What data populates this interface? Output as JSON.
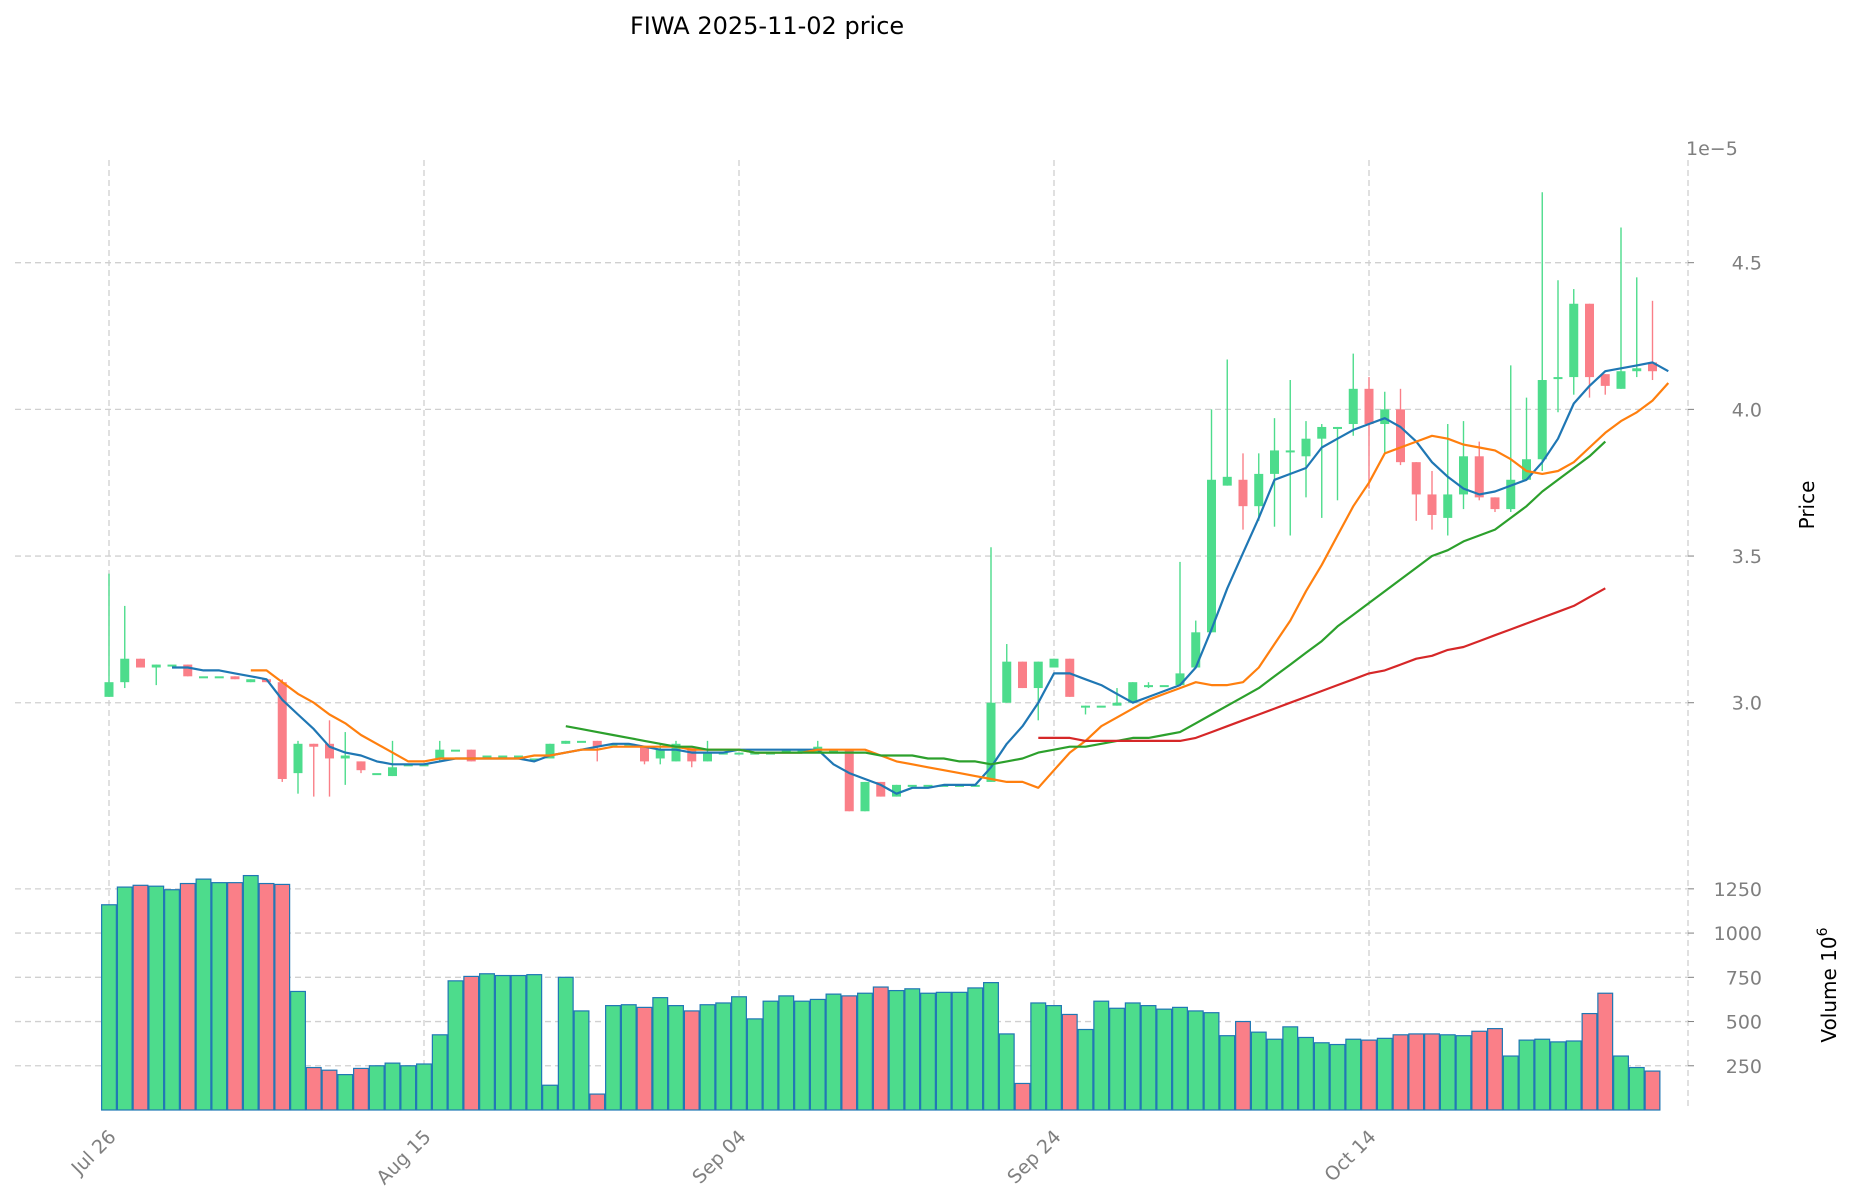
{
  "chart_data": {
    "type": "candlestick",
    "title": "FIWA  2025-11-02  price",
    "price_axis": {
      "label": "Price",
      "exponent_label": "1e−5",
      "ylim": [
        2.515,
        4.85
      ],
      "ticks": [
        3.0,
        3.5,
        4.0,
        4.5
      ],
      "tick_labels": [
        "3.0",
        "3.5",
        "4.0",
        "4.5"
      ]
    },
    "volume_axis": {
      "label": "Volume  10",
      "label_exponent": "6",
      "ylim": [
        0,
        1300
      ],
      "ticks": [
        250,
        500,
        750,
        1000,
        1250
      ],
      "tick_labels": [
        "250",
        "500",
        "750",
        "1000",
        "1250"
      ]
    },
    "x_ticks": [
      {
        "index": 0,
        "label": "Jul 26"
      },
      {
        "index": 20,
        "label": "Aug 15"
      },
      {
        "index": 40,
        "label": "Sep 04"
      },
      {
        "index": 60,
        "label": "Sep 24"
      },
      {
        "index": 80,
        "label": "Oct 14"
      }
    ],
    "colors": {
      "up": "#2ebd6b",
      "down": "#f6465d",
      "up_fill": "#4ddc8c",
      "down_fill": "#fa7f88",
      "edge": "#1f77b4",
      "grid": "#d0d0d0",
      "ma1": "#1f77b4",
      "ma2": "#ff7f0e",
      "ma3": "#2ca02c",
      "ma4": "#d62728"
    },
    "candles": [
      [
        3.02,
        3.07,
        3.44,
        3.02,
        1160
      ],
      [
        3.07,
        3.15,
        3.33,
        3.05,
        1260
      ],
      [
        3.15,
        3.12,
        3.15,
        3.12,
        1270
      ],
      [
        3.12,
        3.13,
        3.13,
        3.06,
        1265
      ],
      [
        3.13,
        3.13,
        3.13,
        3.13,
        1245
      ],
      [
        3.13,
        3.09,
        3.13,
        3.09,
        1280
      ],
      [
        3.09,
        3.09,
        3.09,
        3.09,
        1305
      ],
      [
        3.09,
        3.09,
        3.09,
        3.09,
        1285
      ],
      [
        3.09,
        3.08,
        3.09,
        3.08,
        1285
      ],
      [
        3.07,
        3.08,
        3.08,
        3.07,
        1325
      ],
      [
        3.08,
        3.07,
        3.08,
        3.07,
        1280
      ],
      [
        3.07,
        2.74,
        3.08,
        2.73,
        1275
      ],
      [
        2.76,
        2.86,
        2.87,
        2.69,
        670
      ],
      [
        2.86,
        2.85,
        2.86,
        2.68,
        240
      ],
      [
        2.86,
        2.81,
        2.94,
        2.68,
        225
      ],
      [
        2.81,
        2.82,
        2.9,
        2.72,
        200
      ],
      [
        2.8,
        2.77,
        2.8,
        2.76,
        235
      ],
      [
        2.76,
        2.76,
        2.76,
        2.76,
        250
      ],
      [
        2.75,
        2.78,
        2.87,
        2.75,
        265
      ],
      [
        2.79,
        2.79,
        2.79,
        2.79,
        250
      ],
      [
        2.79,
        2.79,
        2.79,
        2.79,
        260
      ],
      [
        2.81,
        2.84,
        2.87,
        2.8,
        425
      ],
      [
        2.84,
        2.84,
        2.84,
        2.84,
        730
      ],
      [
        2.84,
        2.8,
        2.84,
        2.8,
        755
      ],
      [
        2.82,
        2.82,
        2.82,
        2.82,
        770
      ],
      [
        2.82,
        2.82,
        2.82,
        2.82,
        760
      ],
      [
        2.82,
        2.82,
        2.82,
        2.82,
        760
      ],
      [
        2.81,
        2.81,
        2.81,
        2.81,
        765
      ],
      [
        2.81,
        2.86,
        2.86,
        2.81,
        140
      ],
      [
        2.86,
        2.87,
        2.87,
        2.86,
        750
      ],
      [
        2.87,
        2.87,
        2.87,
        2.87,
        560
      ],
      [
        2.87,
        2.85,
        2.87,
        2.8,
        90
      ],
      [
        2.86,
        2.86,
        2.86,
        2.86,
        590
      ],
      [
        2.86,
        2.86,
        2.86,
        2.86,
        595
      ],
      [
        2.85,
        2.8,
        2.85,
        2.79,
        580
      ],
      [
        2.81,
        2.84,
        2.86,
        2.79,
        635
      ],
      [
        2.8,
        2.86,
        2.87,
        2.8,
        590
      ],
      [
        2.85,
        2.8,
        2.85,
        2.78,
        560
      ],
      [
        2.8,
        2.83,
        2.87,
        2.8,
        595
      ],
      [
        2.83,
        2.83,
        2.83,
        2.83,
        605
      ],
      [
        2.83,
        2.83,
        2.83,
        2.83,
        640
      ],
      [
        2.83,
        2.83,
        2.83,
        2.83,
        515
      ],
      [
        2.83,
        2.83,
        2.83,
        2.83,
        615
      ],
      [
        2.84,
        2.84,
        2.84,
        2.84,
        645
      ],
      [
        2.84,
        2.84,
        2.84,
        2.84,
        615
      ],
      [
        2.83,
        2.85,
        2.87,
        2.83,
        625
      ],
      [
        2.84,
        2.84,
        2.84,
        2.84,
        655
      ],
      [
        2.84,
        2.63,
        2.84,
        2.63,
        645
      ],
      [
        2.63,
        2.73,
        2.73,
        2.63,
        660
      ],
      [
        2.73,
        2.68,
        2.73,
        2.68,
        695
      ],
      [
        2.68,
        2.72,
        2.72,
        2.68,
        675
      ],
      [
        2.72,
        2.72,
        2.72,
        2.72,
        685
      ],
      [
        2.72,
        2.72,
        2.72,
        2.72,
        660
      ],
      [
        2.72,
        2.72,
        2.72,
        2.72,
        665
      ],
      [
        2.72,
        2.72,
        2.72,
        2.72,
        665
      ],
      [
        2.72,
        2.72,
        2.72,
        2.72,
        690
      ],
      [
        2.73,
        3.0,
        3.53,
        2.73,
        720
      ],
      [
        3.0,
        3.14,
        3.2,
        3.0,
        430
      ],
      [
        3.14,
        3.05,
        3.14,
        3.05,
        150
      ],
      [
        3.05,
        3.14,
        3.14,
        2.94,
        605
      ],
      [
        3.12,
        3.15,
        3.15,
        3.12,
        590
      ],
      [
        3.15,
        3.02,
        3.15,
        3.02,
        540
      ],
      [
        2.99,
        2.99,
        2.99,
        2.96,
        455
      ],
      [
        2.99,
        2.99,
        2.99,
        2.99,
        615
      ],
      [
        2.99,
        3.0,
        3.05,
        2.99,
        575
      ],
      [
        3.0,
        3.07,
        3.07,
        3.0,
        605
      ],
      [
        3.06,
        3.06,
        3.07,
        3.05,
        590
      ],
      [
        3.06,
        3.06,
        3.06,
        3.06,
        570
      ],
      [
        3.06,
        3.1,
        3.48,
        3.06,
        580
      ],
      [
        3.12,
        3.24,
        3.28,
        3.12,
        560
      ],
      [
        3.24,
        3.76,
        4.0,
        3.24,
        550
      ],
      [
        3.74,
        3.77,
        4.17,
        3.74,
        420
      ],
      [
        3.76,
        3.67,
        3.85,
        3.59,
        500
      ],
      [
        3.67,
        3.78,
        3.85,
        3.62,
        440
      ],
      [
        3.78,
        3.86,
        3.97,
        3.6,
        400
      ],
      [
        3.86,
        3.86,
        4.1,
        3.57,
        470
      ],
      [
        3.84,
        3.9,
        3.96,
        3.7,
        410
      ],
      [
        3.9,
        3.94,
        3.95,
        3.63,
        380
      ],
      [
        3.94,
        3.94,
        3.94,
        3.69,
        370
      ],
      [
        3.95,
        4.07,
        4.19,
        3.91,
        400
      ],
      [
        4.07,
        3.95,
        4.11,
        3.73,
        395
      ],
      [
        3.95,
        4.0,
        4.06,
        3.85,
        405
      ],
      [
        4.0,
        3.82,
        4.07,
        3.81,
        425
      ],
      [
        3.82,
        3.71,
        3.82,
        3.62,
        430
      ],
      [
        3.71,
        3.64,
        3.79,
        3.59,
        430
      ],
      [
        3.63,
        3.71,
        3.95,
        3.57,
        425
      ],
      [
        3.71,
        3.84,
        3.96,
        3.66,
        420
      ],
      [
        3.84,
        3.7,
        3.89,
        3.69,
        445
      ],
      [
        3.7,
        3.66,
        3.7,
        3.65,
        460
      ],
      [
        3.66,
        3.76,
        4.15,
        3.65,
        305
      ],
      [
        3.76,
        3.83,
        4.04,
        3.76,
        395
      ],
      [
        3.83,
        4.1,
        4.74,
        3.79,
        400
      ],
      [
        4.11,
        4.11,
        4.44,
        3.99,
        385
      ],
      [
        4.11,
        4.36,
        4.41,
        4.05,
        390
      ],
      [
        4.36,
        4.11,
        4.36,
        4.04,
        545
      ],
      [
        4.12,
        4.08,
        4.12,
        4.05,
        660
      ],
      [
        4.07,
        4.13,
        4.62,
        4.07,
        305
      ],
      [
        4.13,
        4.14,
        4.45,
        4.11,
        240
      ],
      [
        4.16,
        4.13,
        4.37,
        4.1,
        220
      ]
    ],
    "moving_averages": [
      {
        "name": "MA5",
        "color": "#1f77b4",
        "start": 4,
        "values": [
          3.12,
          3.12,
          3.11,
          3.11,
          3.1,
          3.09,
          3.08,
          3.01,
          2.96,
          2.91,
          2.85,
          2.83,
          2.82,
          2.8,
          2.79,
          2.79,
          2.79,
          2.8,
          2.81,
          2.81,
          2.81,
          2.81,
          2.81,
          2.8,
          2.82,
          2.83,
          2.84,
          2.85,
          2.86,
          2.86,
          2.85,
          2.84,
          2.84,
          2.83,
          2.83,
          2.83,
          2.84,
          2.84,
          2.84,
          2.84,
          2.84,
          2.84,
          2.79,
          2.76,
          2.74,
          2.72,
          2.69,
          2.71,
          2.71,
          2.72,
          2.72,
          2.72,
          2.78,
          2.86,
          2.92,
          3.0,
          3.1,
          3.1,
          3.08,
          3.06,
          3.03,
          3.0,
          3.02,
          3.04,
          3.06,
          3.12,
          3.25,
          3.39,
          3.51,
          3.63,
          3.76,
          3.78,
          3.8,
          3.87,
          3.9,
          3.93,
          3.95,
          3.97,
          3.94,
          3.89,
          3.82,
          3.77,
          3.73,
          3.71,
          3.72,
          3.74,
          3.76,
          3.82,
          3.9,
          4.02,
          4.08,
          4.13,
          4.14,
          4.15,
          4.16,
          4.13
        ]
      },
      {
        "name": "MA10",
        "color": "#ff7f0e",
        "start": 9,
        "values": [
          3.11,
          3.11,
          3.07,
          3.03,
          3.0,
          2.96,
          2.93,
          2.89,
          2.86,
          2.83,
          2.8,
          2.8,
          2.81,
          2.81,
          2.81,
          2.81,
          2.81,
          2.81,
          2.82,
          2.82,
          2.83,
          2.84,
          2.84,
          2.85,
          2.85,
          2.85,
          2.85,
          2.85,
          2.84,
          2.84,
          2.84,
          2.84,
          2.83,
          2.83,
          2.83,
          2.83,
          2.84,
          2.84,
          2.84,
          2.84,
          2.82,
          2.8,
          2.79,
          2.78,
          2.77,
          2.76,
          2.75,
          2.74,
          2.73,
          2.73,
          2.71,
          2.77,
          2.83,
          2.87,
          2.92,
          2.95,
          2.98,
          3.01,
          3.03,
          3.05,
          3.07,
          3.06,
          3.06,
          3.07,
          3.12,
          3.2,
          3.28,
          3.38,
          3.47,
          3.57,
          3.67,
          3.75,
          3.85,
          3.87,
          3.89,
          3.91,
          3.9,
          3.88,
          3.87,
          3.86,
          3.83,
          3.79,
          3.78,
          3.79,
          3.82,
          3.87,
          3.92,
          3.96,
          3.99,
          4.03,
          4.09
        ]
      },
      {
        "name": "MA20",
        "color": "#2ca02c",
        "start": 29,
        "values": [
          2.92,
          2.91,
          2.9,
          2.89,
          2.88,
          2.87,
          2.86,
          2.85,
          2.85,
          2.84,
          2.84,
          2.84,
          2.83,
          2.83,
          2.83,
          2.83,
          2.83,
          2.83,
          2.83,
          2.83,
          2.82,
          2.82,
          2.82,
          2.81,
          2.81,
          2.8,
          2.8,
          2.79,
          2.8,
          2.81,
          2.83,
          2.84,
          2.85,
          2.85,
          2.86,
          2.87,
          2.88,
          2.88,
          2.89,
          2.9,
          2.93,
          2.96,
          2.99,
          3.02,
          3.05,
          3.09,
          3.13,
          3.17,
          3.21,
          3.26,
          3.3,
          3.34,
          3.38,
          3.42,
          3.46,
          3.5,
          3.52,
          3.55,
          3.57,
          3.59,
          3.63,
          3.67,
          3.72,
          3.76,
          3.8,
          3.84,
          3.89
        ]
      },
      {
        "name": "MA60",
        "color": "#d62728",
        "start": 59,
        "values": [
          2.88,
          2.88,
          2.88,
          2.87,
          2.87,
          2.87,
          2.87,
          2.87,
          2.87,
          2.87,
          2.88,
          2.9,
          2.92,
          2.94,
          2.96,
          2.98,
          3.0,
          3.02,
          3.04,
          3.06,
          3.08,
          3.1,
          3.11,
          3.13,
          3.15,
          3.16,
          3.18,
          3.19,
          3.21,
          3.23,
          3.25,
          3.27,
          3.29,
          3.31,
          3.33,
          3.36,
          3.39
        ]
      }
    ]
  }
}
